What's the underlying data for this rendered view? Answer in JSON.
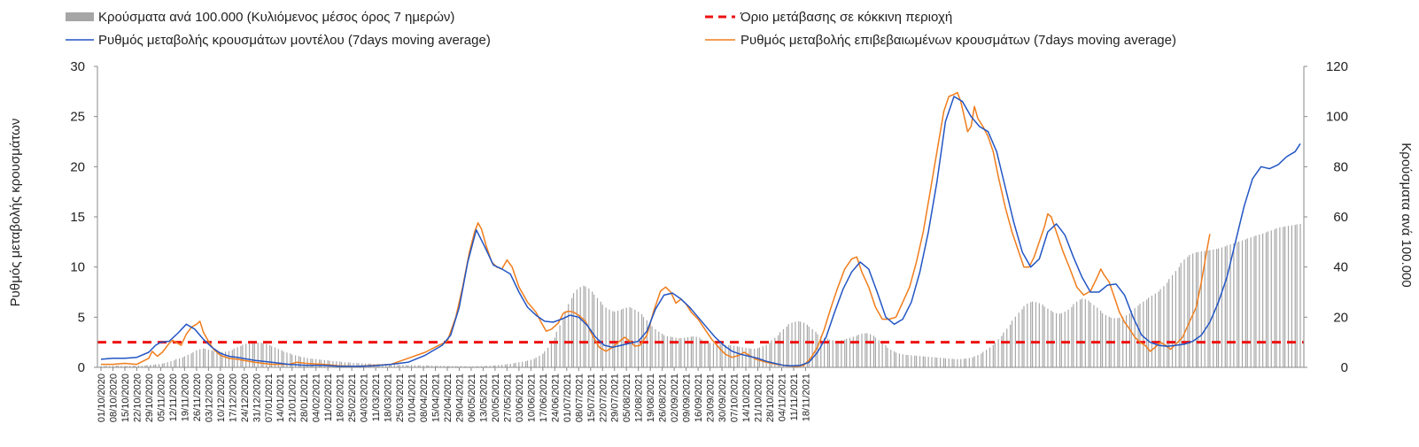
{
  "chart_data": {
    "type": "bar+line",
    "legend": {
      "bars": "Κρούσματα ανά 100.000 (Κυλιόμενος μέσος όρος 7 ημερών)",
      "threshold": "Όριο μετάβασης σε κόκκινη περιοχή",
      "model": "Ρυθμός μεταβολής κρουσμάτων μοντέλου (7days moving average)",
      "confirmed": "Ρυθμός μεταβολής επιβεβαιωμένων κρουσμάτων (7days moving average)"
    },
    "y_left": {
      "label": "Ρυθμός μεταβολής κρουσμάτων",
      "min": 0,
      "max": 30,
      "ticks": [
        0,
        5,
        10,
        15,
        20,
        25,
        30
      ]
    },
    "y_right": {
      "label": "Κρούσματα ανά 100.000",
      "min": 0,
      "max": 120,
      "ticks": [
        0,
        20,
        40,
        60,
        80,
        100,
        120
      ]
    },
    "x_labels": [
      "01/10/2020",
      "08/10/2020",
      "15/10/2020",
      "22/10/2020",
      "29/10/2020",
      "05/11/2020",
      "12/11/2020",
      "19/11/2020",
      "26/11/2020",
      "03/12/2020",
      "10/12/2020",
      "17/12/2020",
      "24/12/2020",
      "31/12/2020",
      "07/01/2021",
      "14/01/2021",
      "21/01/2021",
      "28/01/2021",
      "04/02/2021",
      "11/02/2021",
      "18/02/2021",
      "25/02/2021",
      "04/03/2021",
      "11/03/2021",
      "18/03/2021",
      "25/03/2021",
      "01/04/2021",
      "08/04/2021",
      "15/04/2021",
      "22/04/2021",
      "29/04/2021",
      "06/05/2021",
      "13/05/2021",
      "20/05/2021",
      "27/05/2021",
      "03/06/2021",
      "10/06/2021",
      "17/06/2021",
      "24/06/2021",
      "01/07/2021",
      "08/07/2021",
      "15/07/2021",
      "22/07/2021",
      "29/07/2021",
      "05/08/2021",
      "12/08/2021",
      "19/08/2021",
      "26/08/2021",
      "02/09/2021",
      "09/09/2021",
      "16/09/2021",
      "23/09/2021",
      "30/09/2021",
      "07/10/2021",
      "14/10/2021",
      "21/10/2021",
      "28/10/2021",
      "04/11/2021",
      "11/11/2021",
      "18/11/2021"
    ],
    "threshold_value": 2.5,
    "bars_per_100k": [
      0.5,
      0.5,
      0.6,
      0.5,
      0.6,
      0.7,
      0.7,
      0.6,
      0.6,
      0.6,
      0.6,
      0.7,
      0.6,
      0.7,
      0.6,
      0.8,
      0.9,
      1.0,
      1.0,
      1.2,
      1.3,
      1.5,
      1.7,
      2.0,
      2.4,
      2.8,
      3.3,
      3.6,
      4.0,
      4.4,
      5.0,
      5.5,
      6.0,
      6.8,
      7.2,
      7.5,
      7.4,
      7.0,
      6.8,
      6.5,
      6.5,
      6.2,
      6.1,
      6.3,
      6.5,
      6.9,
      7.5,
      8.0,
      8.5,
      9.0,
      9.4,
      9.8,
      10.0,
      10.0,
      9.9,
      9.8,
      9.6,
      9.3,
      8.9,
      8.4,
      7.9,
      7.3,
      6.8,
      6.3,
      5.9,
      5.5,
      5.1,
      4.8,
      4.5,
      4.2,
      4.0,
      3.7,
      3.5,
      3.4,
      3.3,
      3.1,
      3.0,
      2.9,
      2.8,
      2.6,
      2.5,
      2.4,
      2.3,
      2.1,
      2.0,
      2.0,
      1.9,
      1.8,
      1.7,
      1.7,
      1.6,
      1.5,
      1.5,
      1.5,
      1.4,
      1.3,
      1.3,
      1.2,
      1.1,
      1.0,
      1.1,
      1.0,
      0.9,
      1.0,
      0.9,
      0.9,
      0.8,
      0.9,
      0.8,
      0.8,
      0.8,
      0.7,
      0.8,
      0.7,
      0.7,
      0.6,
      0.6,
      0.6,
      0.6,
      0.5,
      0.5,
      0.5,
      0.5,
      0.4,
      0.5,
      0.4,
      0.4,
      0.4,
      0.4,
      0.4,
      0.5,
      0.5,
      0.5,
      0.6,
      0.6,
      0.7,
      0.8,
      0.9,
      1.0,
      1.1,
      1.3,
      1.4,
      1.6,
      1.8,
      2.0,
      2.2,
      2.4,
      2.7,
      3.0,
      3.4,
      3.9,
      4.6,
      5.4,
      6.4,
      7.8,
      9.6,
      11.8,
      14.2,
      16.8,
      19.6,
      22.4,
      25.2,
      27.6,
      29.6,
      31.0,
      32.0,
      32.6,
      32.2,
      31.4,
      30.2,
      29.0,
      27.6,
      26.2,
      25.0,
      23.8,
      23.0,
      22.4,
      22.2,
      22.6,
      23.0,
      23.4,
      23.8,
      24.0,
      23.6,
      23.0,
      22.2,
      21.2,
      20.0,
      18.8,
      17.6,
      16.4,
      15.2,
      14.2,
      13.4,
      12.8,
      12.4,
      12.2,
      12.0,
      11.8,
      11.6,
      11.6,
      11.8,
      12.0,
      12.2,
      12.4,
      12.2,
      11.8,
      11.2,
      10.6,
      10.2,
      9.8,
      9.6,
      9.4,
      9.2,
      9.1,
      9.0,
      8.9,
      8.8,
      8.6,
      8.4,
      8.2,
      8.0,
      7.8,
      7.6,
      7.4,
      7.4,
      7.6,
      7.9,
      8.4,
      9.0,
      9.8,
      10.8,
      11.8,
      12.8,
      14.0,
      15.2,
      16.2,
      17.2,
      17.8,
      18.2,
      18.4,
      18.2,
      17.8,
      17.0,
      16.2,
      15.2,
      14.2,
      13.2,
      12.4,
      11.8,
      11.4,
      11.0,
      10.8,
      10.6,
      10.6,
      10.8,
      11.0,
      11.4,
      11.8,
      12.2,
      12.6,
      13.0,
      13.4,
      13.6,
      13.6,
      13.2,
      12.6,
      11.8,
      10.8,
      9.8,
      8.8,
      7.8,
      7.0,
      6.4,
      5.9,
      5.5,
      5.2,
      5.0,
      4.9,
      4.8,
      4.7,
      4.6,
      4.5,
      4.4,
      4.3,
      4.2,
      4.1,
      4.0,
      3.9,
      3.8,
      3.7,
      3.6,
      3.5,
      3.4,
      3.3,
      3.3,
      3.3,
      3.4,
      3.5,
      3.7,
      4.0,
      4.4,
      4.9,
      5.5,
      6.2,
      7.0,
      7.9,
      8.9,
      10.0,
      11.2,
      12.5,
      13.9,
      15.4,
      17.0,
      18.6,
      20.2,
      21.8,
      23.2,
      24.4,
      25.4,
      26.0,
      26.2,
      26.0,
      25.6,
      25.0,
      24.2,
      23.4,
      22.6,
      22.0,
      21.6,
      21.4,
      21.6,
      22.2,
      23.0,
      24.0,
      25.2,
      26.2,
      27.0,
      27.4,
      27.2,
      26.6,
      25.8,
      24.8,
      23.8,
      22.6,
      21.6,
      20.8,
      20.2,
      19.8,
      19.6,
      19.6,
      19.8,
      20.2,
      20.8,
      21.6,
      22.6,
      23.6,
      24.6,
      25.4,
      26.2,
      27.0,
      27.8,
      28.6,
      29.4,
      30.2,
      31.2,
      32.4,
      33.8,
      35.2,
      36.8,
      38.4,
      40.0,
      41.6,
      43.0,
      44.0,
      44.8,
      45.4,
      45.8,
      46.0,
      46.2,
      46.4,
      46.6,
      46.8,
      47.0,
      47.2,
      47.4,
      47.8,
      48.2,
      48.6,
      49.0,
      49.4,
      49.8,
      50.2,
      50.6,
      51.0,
      51.4,
      51.8,
      52.2,
      52.6,
      53.0,
      53.4,
      53.8,
      54.2,
      54.6,
      55.0,
      55.4,
      55.8,
      56.0,
      56.2,
      56.4,
      56.6,
      56.8,
      57.0,
      57.2
    ],
    "model_rate": [
      [
        0,
        0.8
      ],
      [
        7,
        0.9
      ],
      [
        14,
        0.9
      ],
      [
        21,
        1.0
      ],
      [
        28,
        1.5
      ],
      [
        32,
        2.2
      ],
      [
        35,
        2.5
      ],
      [
        40,
        2.6
      ],
      [
        45,
        3.4
      ],
      [
        50,
        4.3
      ],
      [
        55,
        3.8
      ],
      [
        60,
        2.8
      ],
      [
        65,
        2.0
      ],
      [
        70,
        1.4
      ],
      [
        75,
        1.1
      ],
      [
        80,
        1.0
      ],
      [
        90,
        0.7
      ],
      [
        100,
        0.5
      ],
      [
        110,
        0.3
      ],
      [
        120,
        0.2
      ],
      [
        130,
        0.2
      ],
      [
        140,
        0.1
      ],
      [
        150,
        0.1
      ],
      [
        160,
        0.15
      ],
      [
        170,
        0.3
      ],
      [
        180,
        0.5
      ],
      [
        190,
        1.2
      ],
      [
        200,
        2.2
      ],
      [
        205,
        3.2
      ],
      [
        210,
        6.0
      ],
      [
        215,
        10.5
      ],
      [
        220,
        13.7
      ],
      [
        225,
        12.0
      ],
      [
        230,
        10.2
      ],
      [
        235,
        9.8
      ],
      [
        240,
        9.3
      ],
      [
        245,
        7.5
      ],
      [
        250,
        6.0
      ],
      [
        255,
        5.2
      ],
      [
        260,
        4.6
      ],
      [
        265,
        4.5
      ],
      [
        270,
        4.8
      ],
      [
        275,
        5.2
      ],
      [
        280,
        5.0
      ],
      [
        285,
        4.2
      ],
      [
        290,
        3.0
      ],
      [
        295,
        2.2
      ],
      [
        300,
        2.0
      ],
      [
        305,
        2.2
      ],
      [
        310,
        2.4
      ],
      [
        315,
        2.6
      ],
      [
        320,
        3.6
      ],
      [
        325,
        5.8
      ],
      [
        330,
        7.2
      ],
      [
        335,
        7.4
      ],
      [
        340,
        6.8
      ],
      [
        345,
        6.0
      ],
      [
        350,
        5.0
      ],
      [
        355,
        4.0
      ],
      [
        360,
        3.0
      ],
      [
        365,
        2.2
      ],
      [
        370,
        1.6
      ],
      [
        375,
        1.3
      ],
      [
        380,
        1.1
      ],
      [
        385,
        0.9
      ],
      [
        390,
        0.6
      ],
      [
        395,
        0.4
      ],
      [
        400,
        0.2
      ],
      [
        405,
        0.15
      ],
      [
        410,
        0.2
      ],
      [
        415,
        0.5
      ],
      [
        420,
        1.5
      ],
      [
        425,
        3.0
      ],
      [
        430,
        5.5
      ],
      [
        435,
        7.8
      ],
      [
        440,
        9.5
      ],
      [
        445,
        10.5
      ],
      [
        450,
        9.8
      ],
      [
        455,
        7.5
      ],
      [
        460,
        5.0
      ],
      [
        465,
        4.3
      ],
      [
        470,
        4.8
      ],
      [
        475,
        6.5
      ],
      [
        480,
        9.5
      ],
      [
        485,
        13.5
      ],
      [
        490,
        18.5
      ],
      [
        495,
        24.5
      ],
      [
        500,
        27.0
      ],
      [
        505,
        26.5
      ],
      [
        510,
        25.0
      ],
      [
        515,
        24.0
      ],
      [
        520,
        23.5
      ],
      [
        525,
        21.5
      ],
      [
        530,
        18.0
      ],
      [
        535,
        14.5
      ],
      [
        540,
        11.5
      ],
      [
        545,
        10.0
      ],
      [
        550,
        10.8
      ],
      [
        555,
        13.5
      ],
      [
        560,
        14.3
      ],
      [
        565,
        13.2
      ],
      [
        570,
        11.0
      ],
      [
        575,
        9.0
      ],
      [
        580,
        7.5
      ],
      [
        585,
        7.5
      ],
      [
        590,
        8.2
      ],
      [
        595,
        8.3
      ],
      [
        600,
        7.2
      ],
      [
        605,
        5.0
      ],
      [
        610,
        3.2
      ],
      [
        615,
        2.5
      ],
      [
        620,
        2.2
      ],
      [
        625,
        2.1
      ],
      [
        630,
        2.2
      ],
      [
        635,
        2.3
      ],
      [
        640,
        2.6
      ],
      [
        645,
        3.2
      ],
      [
        650,
        4.5
      ],
      [
        655,
        6.5
      ],
      [
        660,
        9.0
      ],
      [
        665,
        12.5
      ],
      [
        670,
        16.0
      ],
      [
        675,
        18.8
      ],
      [
        680,
        20.0
      ],
      [
        685,
        19.8
      ],
      [
        690,
        20.2
      ],
      [
        695,
        21.0
      ],
      [
        700,
        21.5
      ],
      [
        703,
        22.3
      ]
    ],
    "confirmed_rate": [
      [
        0,
        0.3
      ],
      [
        7,
        0.3
      ],
      [
        14,
        0.4
      ],
      [
        21,
        0.3
      ],
      [
        28,
        0.9
      ],
      [
        30,
        1.6
      ],
      [
        33,
        1.1
      ],
      [
        36,
        1.5
      ],
      [
        40,
        2.4
      ],
      [
        42,
        2.7
      ],
      [
        44,
        2.5
      ],
      [
        47,
        2.2
      ],
      [
        50,
        3.3
      ],
      [
        53,
        4.0
      ],
      [
        56,
        4.3
      ],
      [
        58,
        4.6
      ],
      [
        60,
        3.5
      ],
      [
        63,
        2.6
      ],
      [
        66,
        1.8
      ],
      [
        70,
        1.2
      ],
      [
        75,
        0.9
      ],
      [
        80,
        0.8
      ],
      [
        90,
        0.5
      ],
      [
        100,
        0.3
      ],
      [
        110,
        0.3
      ],
      [
        115,
        0.5
      ],
      [
        120,
        0.4
      ],
      [
        130,
        0.3
      ],
      [
        140,
        0.15
      ],
      [
        150,
        0.1
      ],
      [
        160,
        0.2
      ],
      [
        170,
        0.3
      ],
      [
        175,
        0.6
      ],
      [
        180,
        0.9
      ],
      [
        190,
        1.5
      ],
      [
        198,
        2.2
      ],
      [
        203,
        2.6
      ],
      [
        208,
        5.0
      ],
      [
        212,
        8.0
      ],
      [
        216,
        11.5
      ],
      [
        219,
        13.5
      ],
      [
        221,
        14.4
      ],
      [
        223,
        13.8
      ],
      [
        226,
        12.0
      ],
      [
        229,
        10.5
      ],
      [
        232,
        10.0
      ],
      [
        235,
        9.8
      ],
      [
        238,
        10.7
      ],
      [
        241,
        10.0
      ],
      [
        245,
        8.0
      ],
      [
        250,
        6.5
      ],
      [
        255,
        5.5
      ],
      [
        258,
        4.5
      ],
      [
        261,
        3.6
      ],
      [
        264,
        3.8
      ],
      [
        268,
        4.4
      ],
      [
        271,
        5.4
      ],
      [
        274,
        5.6
      ],
      [
        277,
        5.5
      ],
      [
        280,
        5.2
      ],
      [
        284,
        4.6
      ],
      [
        288,
        3.2
      ],
      [
        292,
        2.0
      ],
      [
        296,
        1.6
      ],
      [
        300,
        2.0
      ],
      [
        304,
        2.6
      ],
      [
        307,
        3.0
      ],
      [
        310,
        2.6
      ],
      [
        313,
        2.1
      ],
      [
        316,
        2.2
      ],
      [
        320,
        3.2
      ],
      [
        324,
        5.6
      ],
      [
        328,
        7.6
      ],
      [
        331,
        8.0
      ],
      [
        334,
        7.5
      ],
      [
        337,
        6.4
      ],
      [
        340,
        6.8
      ],
      [
        343,
        6.3
      ],
      [
        346,
        5.5
      ],
      [
        350,
        4.8
      ],
      [
        354,
        3.8
      ],
      [
        358,
        2.8
      ],
      [
        362,
        2.0
      ],
      [
        366,
        1.3
      ],
      [
        370,
        1.0
      ],
      [
        374,
        1.2
      ],
      [
        377,
        1.5
      ],
      [
        380,
        1.2
      ],
      [
        384,
        0.8
      ],
      [
        390,
        0.5
      ],
      [
        396,
        0.3
      ],
      [
        402,
        0.15
      ],
      [
        408,
        0.1
      ],
      [
        412,
        0.2
      ],
      [
        416,
        0.9
      ],
      [
        420,
        2.0
      ],
      [
        424,
        3.8
      ],
      [
        428,
        6.0
      ],
      [
        432,
        8.0
      ],
      [
        436,
        9.8
      ],
      [
        440,
        10.8
      ],
      [
        443,
        11.0
      ],
      [
        446,
        9.5
      ],
      [
        450,
        8.0
      ],
      [
        454,
        6.0
      ],
      [
        458,
        4.8
      ],
      [
        462,
        4.8
      ],
      [
        466,
        5.0
      ],
      [
        470,
        6.5
      ],
      [
        474,
        8.0
      ],
      [
        478,
        10.5
      ],
      [
        482,
        13.5
      ],
      [
        486,
        17.5
      ],
      [
        490,
        21.5
      ],
      [
        494,
        25.5
      ],
      [
        497,
        27.0
      ],
      [
        500,
        27.2
      ],
      [
        502,
        27.4
      ],
      [
        504,
        26.5
      ],
      [
        506,
        25.0
      ],
      [
        508,
        23.5
      ],
      [
        510,
        24.0
      ],
      [
        512,
        26.0
      ],
      [
        514,
        24.8
      ],
      [
        517,
        24.0
      ],
      [
        520,
        23.0
      ],
      [
        523,
        21.5
      ],
      [
        526,
        19.0
      ],
      [
        530,
        16.0
      ],
      [
        534,
        13.5
      ],
      [
        538,
        11.5
      ],
      [
        541,
        10.0
      ],
      [
        544,
        10.0
      ],
      [
        547,
        11.0
      ],
      [
        550,
        12.5
      ],
      [
        553,
        14.0
      ],
      [
        555,
        15.3
      ],
      [
        557,
        15.0
      ],
      [
        560,
        13.5
      ],
      [
        564,
        11.5
      ],
      [
        568,
        9.8
      ],
      [
        572,
        8.0
      ],
      [
        576,
        7.2
      ],
      [
        580,
        7.6
      ],
      [
        584,
        9.0
      ],
      [
        586,
        9.8
      ],
      [
        588,
        9.2
      ],
      [
        591,
        8.5
      ],
      [
        594,
        7.0
      ],
      [
        597,
        5.5
      ],
      [
        600,
        4.5
      ],
      [
        603,
        3.8
      ],
      [
        606,
        3.0
      ],
      [
        609,
        2.5
      ],
      [
        612,
        2.2
      ],
      [
        615,
        1.6
      ],
      [
        618,
        2.0
      ],
      [
        621,
        2.5
      ],
      [
        624,
        2.2
      ],
      [
        627,
        1.8
      ],
      [
        630,
        2.3
      ],
      [
        634,
        3.0
      ],
      [
        638,
        4.5
      ],
      [
        642,
        6.0
      ],
      [
        645,
        8.5
      ],
      [
        648,
        11.5
      ],
      [
        650,
        13.3
      ]
    ]
  }
}
